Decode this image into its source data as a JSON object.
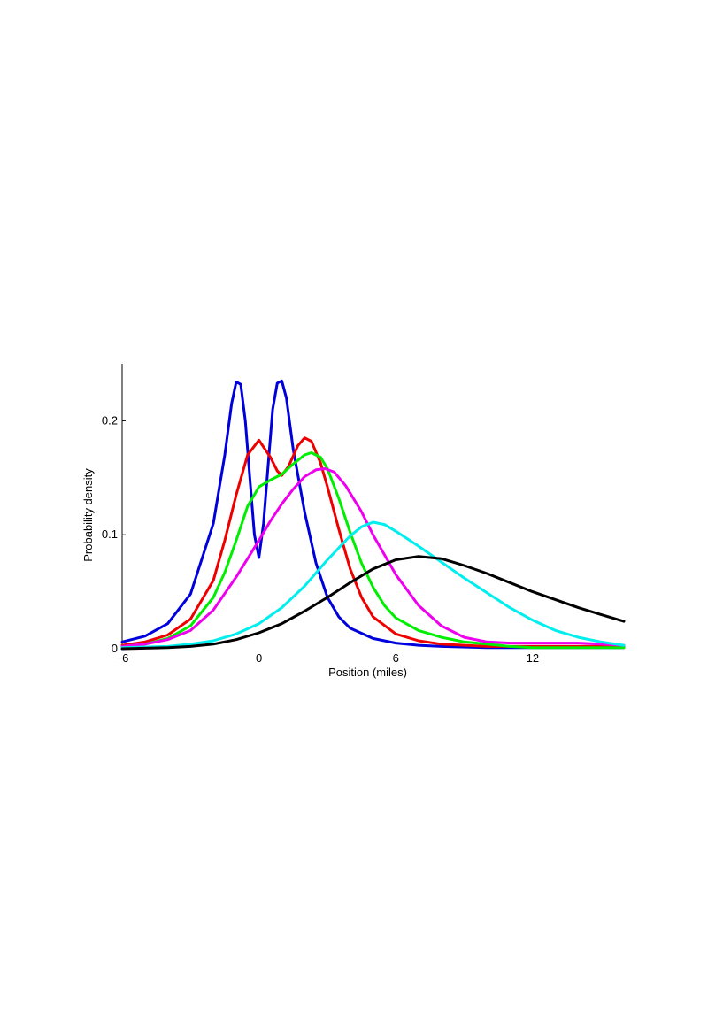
{
  "chart_data": {
    "type": "line",
    "title": "",
    "xlabel": "Position (miles)",
    "ylabel": "Probability density",
    "xlim": [
      -6,
      16
    ],
    "ylim": [
      0,
      0.25
    ],
    "xticks": [
      -6,
      0,
      6,
      12
    ],
    "yticks": [
      0,
      0.1,
      0.2
    ],
    "xtick_labels": [
      "−6",
      "0",
      "6",
      "12"
    ],
    "ytick_labels": [
      "0",
      "0.1",
      "0.2"
    ],
    "grid": false,
    "legend": "none",
    "series": [
      {
        "color": "#0000dd",
        "points": [
          [
            -6,
            0.006
          ],
          [
            -5,
            0.011
          ],
          [
            -4,
            0.022
          ],
          [
            -3,
            0.048
          ],
          [
            -2,
            0.11
          ],
          [
            -1.5,
            0.17
          ],
          [
            -1.2,
            0.215
          ],
          [
            -1,
            0.234
          ],
          [
            -0.8,
            0.232
          ],
          [
            -0.6,
            0.2
          ],
          [
            -0.4,
            0.15
          ],
          [
            -0.2,
            0.1
          ],
          [
            0,
            0.08
          ],
          [
            0.2,
            0.11
          ],
          [
            0.4,
            0.16
          ],
          [
            0.6,
            0.21
          ],
          [
            0.8,
            0.233
          ],
          [
            1,
            0.235
          ],
          [
            1.2,
            0.22
          ],
          [
            1.5,
            0.175
          ],
          [
            2,
            0.12
          ],
          [
            2.5,
            0.075
          ],
          [
            3,
            0.045
          ],
          [
            3.5,
            0.028
          ],
          [
            4,
            0.018
          ],
          [
            5,
            0.009
          ],
          [
            6,
            0.005
          ],
          [
            7,
            0.003
          ],
          [
            8,
            0.002
          ],
          [
            10,
            0.001
          ],
          [
            12,
            0.001
          ],
          [
            16,
            0.001
          ]
        ]
      },
      {
        "color": "#ee0000",
        "points": [
          [
            -6,
            0.003
          ],
          [
            -5,
            0.006
          ],
          [
            -4,
            0.012
          ],
          [
            -3,
            0.026
          ],
          [
            -2,
            0.06
          ],
          [
            -1.5,
            0.095
          ],
          [
            -1,
            0.135
          ],
          [
            -0.5,
            0.17
          ],
          [
            0,
            0.183
          ],
          [
            0.5,
            0.168
          ],
          [
            0.8,
            0.156
          ],
          [
            1,
            0.152
          ],
          [
            1.3,
            0.16
          ],
          [
            1.7,
            0.178
          ],
          [
            2,
            0.185
          ],
          [
            2.3,
            0.182
          ],
          [
            2.7,
            0.163
          ],
          [
            3,
            0.142
          ],
          [
            3.5,
            0.105
          ],
          [
            4,
            0.07
          ],
          [
            4.5,
            0.045
          ],
          [
            5,
            0.028
          ],
          [
            6,
            0.013
          ],
          [
            7,
            0.007
          ],
          [
            8,
            0.004
          ],
          [
            10,
            0.002
          ],
          [
            12,
            0.002
          ],
          [
            16,
            0.002
          ]
        ]
      },
      {
        "color": "#00ee00",
        "points": [
          [
            -6,
            0.002
          ],
          [
            -5,
            0.004
          ],
          [
            -4,
            0.009
          ],
          [
            -3,
            0.02
          ],
          [
            -2,
            0.045
          ],
          [
            -1.5,
            0.067
          ],
          [
            -1,
            0.095
          ],
          [
            -0.5,
            0.125
          ],
          [
            0,
            0.142
          ],
          [
            0.5,
            0.148
          ],
          [
            1,
            0.153
          ],
          [
            1.5,
            0.162
          ],
          [
            2,
            0.17
          ],
          [
            2.3,
            0.172
          ],
          [
            2.7,
            0.168
          ],
          [
            3,
            0.158
          ],
          [
            3.5,
            0.132
          ],
          [
            4,
            0.102
          ],
          [
            4.5,
            0.075
          ],
          [
            5,
            0.054
          ],
          [
            5.5,
            0.038
          ],
          [
            6,
            0.027
          ],
          [
            7,
            0.016
          ],
          [
            8,
            0.01
          ],
          [
            9,
            0.006
          ],
          [
            10,
            0.004
          ],
          [
            11,
            0.002
          ],
          [
            12,
            0.001
          ],
          [
            16,
            0.001
          ]
        ]
      },
      {
        "color": "#ee00ee",
        "points": [
          [
            -6,
            0.002
          ],
          [
            -5,
            0.004
          ],
          [
            -4,
            0.008
          ],
          [
            -3,
            0.016
          ],
          [
            -2,
            0.034
          ],
          [
            -1,
            0.063
          ],
          [
            0,
            0.095
          ],
          [
            0.5,
            0.112
          ],
          [
            1,
            0.127
          ],
          [
            1.5,
            0.14
          ],
          [
            2,
            0.151
          ],
          [
            2.5,
            0.157
          ],
          [
            2.9,
            0.158
          ],
          [
            3.3,
            0.155
          ],
          [
            3.8,
            0.143
          ],
          [
            4.5,
            0.12
          ],
          [
            5,
            0.1
          ],
          [
            6,
            0.065
          ],
          [
            7,
            0.038
          ],
          [
            8,
            0.02
          ],
          [
            9,
            0.01
          ],
          [
            10,
            0.006
          ],
          [
            11,
            0.005
          ],
          [
            12,
            0.005
          ],
          [
            13,
            0.005
          ],
          [
            14,
            0.005
          ],
          [
            15,
            0.004
          ],
          [
            16,
            0.003
          ]
        ]
      },
      {
        "color": "#00eeee",
        "points": [
          [
            -6,
            0.001
          ],
          [
            -4,
            0.002
          ],
          [
            -3,
            0.004
          ],
          [
            -2,
            0.007
          ],
          [
            -1,
            0.013
          ],
          [
            0,
            0.022
          ],
          [
            1,
            0.036
          ],
          [
            2,
            0.055
          ],
          [
            3,
            0.078
          ],
          [
            4,
            0.099
          ],
          [
            4.5,
            0.107
          ],
          [
            5,
            0.111
          ],
          [
            5.5,
            0.109
          ],
          [
            6,
            0.103
          ],
          [
            7,
            0.09
          ],
          [
            8,
            0.076
          ],
          [
            9,
            0.062
          ],
          [
            10,
            0.049
          ],
          [
            11,
            0.036
          ],
          [
            12,
            0.025
          ],
          [
            13,
            0.016
          ],
          [
            14,
            0.01
          ],
          [
            15,
            0.006
          ],
          [
            16,
            0.003
          ]
        ]
      },
      {
        "color": "#000000",
        "points": [
          [
            -6,
            0
          ],
          [
            -4,
            0.001
          ],
          [
            -3,
            0.002
          ],
          [
            -2,
            0.004
          ],
          [
            -1,
            0.008
          ],
          [
            0,
            0.014
          ],
          [
            1,
            0.022
          ],
          [
            2,
            0.033
          ],
          [
            3,
            0.045
          ],
          [
            4,
            0.058
          ],
          [
            5,
            0.07
          ],
          [
            6,
            0.078
          ],
          [
            7,
            0.081
          ],
          [
            8,
            0.079
          ],
          [
            9,
            0.073
          ],
          [
            10,
            0.066
          ],
          [
            11,
            0.058
          ],
          [
            12,
            0.05
          ],
          [
            13,
            0.043
          ],
          [
            14,
            0.036
          ],
          [
            15,
            0.03
          ],
          [
            16,
            0.024
          ]
        ]
      }
    ]
  }
}
